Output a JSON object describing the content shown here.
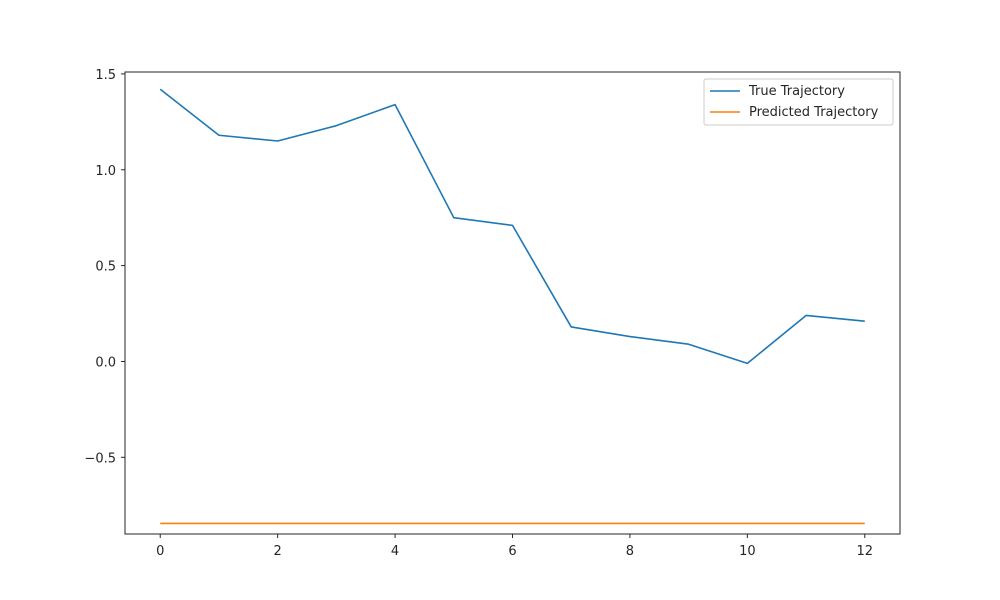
{
  "chart_data": {
    "type": "line",
    "title": "",
    "xlabel": "",
    "ylabel": "",
    "xlim": [
      -0.6,
      12.6
    ],
    "ylim": [
      -0.9,
      1.51
    ],
    "x_ticks": [
      0,
      2,
      4,
      6,
      8,
      10,
      12
    ],
    "x_tick_labels": [
      "0",
      "2",
      "4",
      "6",
      "8",
      "10",
      "12"
    ],
    "y_ticks": [
      -0.5,
      0.0,
      0.5,
      1.0,
      1.5
    ],
    "y_tick_labels": [
      "−0.5",
      "0.0",
      "0.5",
      "1.0",
      "1.5"
    ],
    "grid": false,
    "legend_position": "top-right",
    "x": [
      0,
      1,
      2,
      3,
      4,
      5,
      6,
      7,
      8,
      9,
      10,
      11,
      12
    ],
    "series": [
      {
        "name": "True Trajectory",
        "color": "#1f77b4",
        "values": [
          1.42,
          1.18,
          1.15,
          1.23,
          1.34,
          0.75,
          0.71,
          0.18,
          0.13,
          0.09,
          -0.01,
          0.24,
          0.21
        ]
      },
      {
        "name": "Predicted Trajectory",
        "color": "#ff7f0e",
        "values": [
          -0.845,
          -0.845,
          -0.845,
          -0.845,
          -0.845,
          -0.845,
          -0.845,
          -0.845,
          -0.845,
          -0.845,
          -0.845,
          -0.845,
          -0.845
        ]
      }
    ]
  }
}
